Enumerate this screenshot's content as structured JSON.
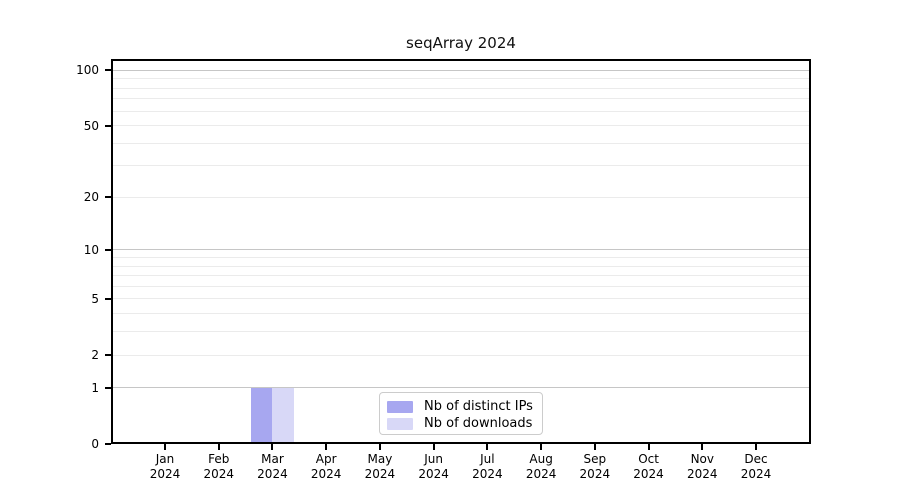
{
  "title": "seqArray 2024",
  "colors": {
    "spine": "#000000",
    "grid_major": "#c6c6c6",
    "grid_minor": "#ebebeb",
    "background": "#ffffff",
    "text": "#000000",
    "legend_border": "#cccccc",
    "bar_distinct_ips": "#a7a7f0",
    "bar_downloads": "#d8d8f7"
  },
  "legend": {
    "items": [
      {
        "label": "Nb of distinct IPs",
        "color": "#a7a7f0"
      },
      {
        "label": "Nb of downloads",
        "color": "#d8d8f7"
      }
    ]
  },
  "chart_data": {
    "type": "bar",
    "title": "seqArray 2024",
    "categories": [
      "Jan 2024",
      "Feb 2024",
      "Mar 2024",
      "Apr 2024",
      "May 2024",
      "Jun 2024",
      "Jul 2024",
      "Aug 2024",
      "Sep 2024",
      "Oct 2024",
      "Nov 2024",
      "Dec 2024"
    ],
    "series": [
      {
        "name": "Nb of distinct IPs",
        "color": "#a7a7f0",
        "values": [
          0,
          0,
          1,
          0,
          0,
          0,
          0,
          0,
          0,
          0,
          0,
          0
        ]
      },
      {
        "name": "Nb of downloads",
        "color": "#d8d8f7",
        "values": [
          0,
          0,
          1,
          0,
          0,
          0,
          0,
          0,
          0,
          0,
          0,
          0
        ]
      }
    ],
    "xlabel": "",
    "ylabel": "",
    "yscale": "log1p",
    "ylim": [
      0,
      116
    ],
    "y_ticks": [
      0,
      1,
      2,
      5,
      10,
      20,
      50,
      100
    ],
    "grid": {
      "major_lines": [
        1,
        10,
        100
      ],
      "minor_lines": [
        2,
        3,
        4,
        5,
        6,
        7,
        8,
        9,
        20,
        30,
        40,
        50,
        60,
        70,
        80,
        90
      ]
    },
    "legend_position": "inside-bottom-center"
  }
}
